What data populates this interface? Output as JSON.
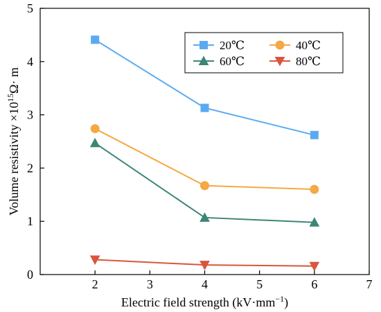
{
  "chart_data": {
    "type": "line",
    "title": "",
    "xlabel": "Electric field strength (kV·mm",
    "xlabel_sup": "−1",
    "xlabel_end": ")",
    "ylabel": "Volume resistivity ×10",
    "ylabel_sup": "15",
    "ylabel_end": "Ω· m",
    "xlim": [
      1,
      7
    ],
    "ylim": [
      0,
      5
    ],
    "xticks": [
      "2",
      "3",
      "4",
      "5",
      "6",
      "7"
    ],
    "yticks": [
      "0",
      "1",
      "2",
      "3",
      "4",
      "5"
    ],
    "x": [
      2,
      4,
      6
    ],
    "grid": false,
    "legend_position": "top-right",
    "series": [
      {
        "name": "20℃",
        "values": [
          4.41,
          3.13,
          2.62
        ],
        "color": "#5aaaf2",
        "marker": "square"
      },
      {
        "name": "40℃",
        "values": [
          2.74,
          1.67,
          1.6
        ],
        "color": "#f5a843",
        "marker": "circle"
      },
      {
        "name": "60℃",
        "values": [
          2.47,
          1.07,
          0.98
        ],
        "color": "#3d8577",
        "marker": "triangle-up"
      },
      {
        "name": "80℃",
        "values": [
          0.28,
          0.18,
          0.16
        ],
        "color": "#d9553b",
        "marker": "triangle-down"
      }
    ]
  }
}
